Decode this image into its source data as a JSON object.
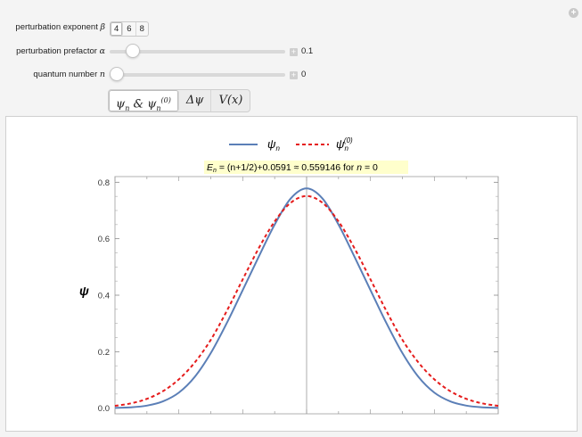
{
  "controls": {
    "beta": {
      "label_text": "perturbation exponent ",
      "symbol": "β",
      "options": [
        "4",
        "6",
        "8"
      ],
      "selected": "4"
    },
    "alpha": {
      "label_text": "perturbation prefactor ",
      "symbol": "α",
      "value": "0.1",
      "fraction": 0.1
    },
    "n": {
      "label_text": "quantum number ",
      "symbol": "n",
      "value": "0",
      "fraction": 0.0
    }
  },
  "tabs": [
    {
      "main": "ψ",
      "sub": "n",
      "amp": " & ψ",
      "sub2": "n",
      "sup2": "(0)",
      "selected": true
    },
    {
      "main": "Δψ",
      "selected": false
    },
    {
      "main": "V(x)",
      "selected": false
    }
  ],
  "chart_data": {
    "type": "line",
    "legend": {
      "entries": [
        {
          "name": "ψ",
          "sub": "n",
          "sup": "",
          "color": "#5b7fb7",
          "style": "solid"
        },
        {
          "name": "ψ",
          "sub": "n",
          "sup": "(0)",
          "color": "#e51c1c",
          "style": "dashed"
        }
      ],
      "position": "top-center"
    },
    "annotation": {
      "E": "E",
      "E_sub": "n",
      "mid": " = (n+1/2)+0.0591 ≈ 0.559146   for ",
      "n": "n",
      "tail": " = 0",
      "background": "#ffffcc"
    },
    "ylabel": "ψ",
    "ylim": [
      -0.02,
      0.82
    ],
    "xlim": [
      -3.0,
      3.0
    ],
    "yticks": [
      "0.0",
      "0.2",
      "0.4",
      "0.6",
      "0.8"
    ],
    "ytick_values": [
      0.0,
      0.2,
      0.4,
      0.6,
      0.8
    ],
    "vertical_line_at": 0,
    "series": [
      {
        "name": "ψ_n",
        "color": "#5b7fb7",
        "style": "solid",
        "x": [
          -3.0,
          -2.75,
          -2.5,
          -2.25,
          -2.0,
          -1.75,
          -1.5,
          -1.25,
          -1.0,
          -0.75,
          -0.5,
          -0.25,
          0.0,
          0.25,
          0.5,
          0.75,
          1.0,
          1.25,
          1.5,
          1.75,
          2.0,
          2.25,
          2.5,
          2.75,
          3.0
        ],
        "values": [
          0.001,
          0.003,
          0.009,
          0.024,
          0.055,
          0.111,
          0.195,
          0.301,
          0.418,
          0.536,
          0.65,
          0.742,
          0.778,
          0.742,
          0.65,
          0.536,
          0.418,
          0.301,
          0.195,
          0.111,
          0.055,
          0.024,
          0.009,
          0.003,
          0.001
        ]
      },
      {
        "name": "ψ_n^(0)",
        "color": "#e51c1c",
        "style": "dashed",
        "x": [
          -3.0,
          -2.75,
          -2.5,
          -2.25,
          -2.0,
          -1.75,
          -1.5,
          -1.25,
          -1.0,
          -0.75,
          -0.5,
          -0.25,
          0.0,
          0.25,
          0.5,
          0.75,
          1.0,
          1.25,
          1.5,
          1.75,
          2.0,
          2.25,
          2.5,
          2.75,
          3.0
        ],
        "values": [
          0.008,
          0.017,
          0.033,
          0.06,
          0.102,
          0.162,
          0.242,
          0.344,
          0.456,
          0.566,
          0.661,
          0.727,
          0.751,
          0.727,
          0.661,
          0.566,
          0.456,
          0.344,
          0.242,
          0.162,
          0.102,
          0.06,
          0.033,
          0.017,
          0.008
        ]
      }
    ]
  }
}
